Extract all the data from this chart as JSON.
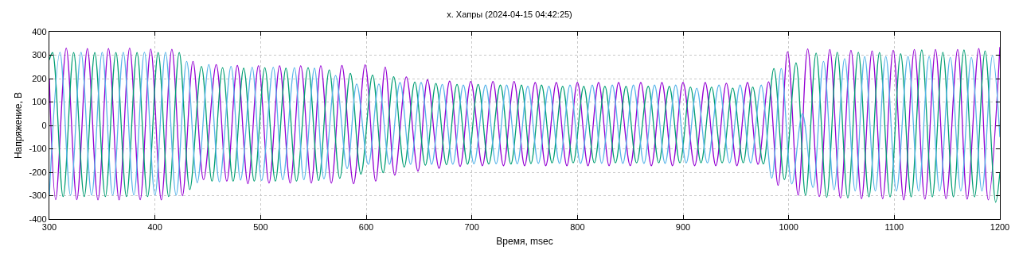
{
  "chart_data": {
    "type": "line",
    "title": "х. Хапры (2024-04-15 04:42:25)",
    "xlabel": "Время, msec",
    "ylabel": "Напряжение, В",
    "xlim": [
      300,
      1200
    ],
    "xticks": [
      300,
      400,
      500,
      600,
      700,
      800,
      900,
      1000,
      1100,
      1200
    ],
    "ylim": [
      -400,
      400
    ],
    "yticks": [
      -400,
      -300,
      -200,
      -100,
      0,
      100,
      200,
      300,
      400
    ],
    "grid": true,
    "marker": "none",
    "line_style": "solid",
    "series": [
      {
        "color": "#9400d3",
        "x": [
          300,
          306,
          316,
          326,
          336,
          346,
          356,
          366,
          376,
          386,
          396,
          406,
          416,
          426,
          436,
          446,
          458,
          468,
          478,
          488,
          498,
          508,
          518,
          528,
          538,
          548,
          557,
          567,
          577,
          588,
          599,
          609,
          618,
          627,
          638,
          649,
          658,
          669,
          679,
          689,
          699,
          710,
          720,
          730,
          740,
          750,
          760,
          770,
          780,
          790,
          800,
          810,
          820,
          830,
          839,
          850,
          860,
          870,
          880,
          890,
          900,
          911,
          921,
          931,
          941,
          951,
          961,
          971,
          981,
          990,
          999,
          1009,
          1018,
          1029,
          1039,
          1049,
          1059,
          1069,
          1079,
          1089,
          1099,
          1109,
          1119,
          1129,
          1139,
          1149,
          1160,
          1169,
          1180,
          1189,
          1200
        ],
        "values": [
          200,
          -317,
          330,
          -317,
          328,
          -318,
          328,
          -318,
          330,
          -317,
          326,
          -318,
          325,
          -300,
          273,
          -232,
          260,
          -238,
          256,
          -249,
          255,
          -246,
          255,
          -246,
          255,
          -246,
          255,
          -246,
          256,
          -249,
          259,
          -238,
          249,
          -212,
          207,
          -195,
          195,
          -183,
          189,
          -175,
          188,
          -172,
          188,
          -172,
          188,
          -172,
          183,
          -172,
          183,
          -172,
          183,
          -172,
          183,
          -172,
          183,
          -172,
          183,
          -172,
          183,
          -172,
          183,
          -172,
          183,
          -172,
          180,
          -172,
          183,
          -166,
          186,
          -256,
          315,
          -298,
          327,
          -304,
          324,
          -310,
          321,
          -313,
          318,
          -313,
          321,
          -318,
          324,
          -315,
          324,
          -313,
          324,
          -315,
          328,
          -318,
          335
        ]
      },
      {
        "color": "#009e73",
        "x": [
          300,
          303,
          313,
          323,
          333,
          343,
          353,
          363,
          373,
          383,
          393,
          403,
          413,
          423,
          433,
          444,
          454,
          464,
          474,
          484,
          494,
          504,
          514,
          524,
          534,
          545,
          555,
          565,
          575,
          585,
          595,
          606,
          616,
          626,
          636,
          646,
          656,
          666,
          676,
          686,
          696,
          706,
          716,
          727,
          737,
          747,
          756,
          766,
          776,
          786,
          796,
          806,
          816,
          826,
          836,
          846,
          856,
          867,
          877,
          887,
          897,
          907,
          917,
          927,
          937,
          947,
          957,
          966,
          976,
          986,
          996,
          1007,
          1016,
          1026,
          1036,
          1046,
          1056,
          1066,
          1076,
          1086,
          1096,
          1106,
          1116,
          1126,
          1136,
          1146,
          1156,
          1166,
          1176,
          1186,
          1196,
          1200
        ],
        "values": [
          280,
          311,
          -304,
          311,
          -304,
          311,
          -304,
          311,
          -304,
          311,
          -304,
          311,
          -304,
          311,
          -274,
          252,
          -238,
          246,
          -238,
          244,
          -238,
          246,
          -238,
          244,
          -238,
          246,
          -235,
          237,
          -226,
          222,
          -208,
          215,
          -202,
          208,
          -178,
          185,
          -170,
          179,
          -168,
          175,
          -166,
          175,
          -165,
          172,
          -165,
          172,
          -163,
          172,
          -160,
          167,
          -160,
          167,
          -160,
          167,
          -160,
          167,
          -160,
          167,
          -160,
          167,
          -160,
          164,
          -160,
          164,
          -160,
          160,
          -160,
          164,
          -165,
          243,
          -231,
          267,
          -298,
          309,
          -307,
          312,
          -310,
          312,
          -305,
          311,
          -305,
          306,
          -305,
          322,
          -305,
          312,
          -305,
          322,
          -305,
          318,
          -328,
          -200
        ]
      },
      {
        "color": "#56b4e9",
        "x": [
          300,
          310,
          320,
          330,
          340,
          350,
          360,
          370,
          380,
          390,
          400,
          410,
          420,
          430,
          440,
          451,
          461,
          472,
          481,
          492,
          501,
          512,
          521,
          532,
          541,
          551,
          560,
          571,
          582,
          591,
          602,
          612,
          622,
          632,
          642,
          652,
          662,
          672,
          682,
          692,
          702,
          713,
          723,
          733,
          743,
          753,
          763,
          773,
          783,
          793,
          803,
          814,
          823,
          833,
          843,
          853,
          863,
          873,
          883,
          893,
          903,
          913,
          923,
          934,
          944,
          954,
          964,
          974,
          984,
          993,
          1003,
          1013,
          1023,
          1033,
          1043,
          1053,
          1063,
          1072,
          1082,
          1092,
          1102,
          1113,
          1123,
          1133,
          1143,
          1153,
          1163,
          1173,
          1183,
          1193,
          1200
        ],
        "values": [
          -298,
          312,
          -298,
          312,
          -298,
          312,
          -298,
          312,
          -298,
          312,
          -298,
          312,
          -298,
          273,
          -244,
          260,
          -241,
          252,
          -233,
          248,
          -235,
          248,
          -232,
          246,
          -232,
          244,
          -228,
          213,
          -184,
          177,
          -166,
          177,
          -166,
          183,
          -166,
          183,
          -166,
          175,
          -166,
          172,
          -164,
          172,
          -164,
          172,
          -164,
          167,
          -162,
          167,
          -162,
          172,
          -162,
          172,
          -162,
          172,
          -162,
          172,
          -162,
          172,
          -162,
          172,
          -160,
          159,
          -160,
          172,
          -160,
          172,
          -160,
          172,
          -225,
          243,
          -250,
          50,
          -265,
          273,
          -275,
          285,
          -280,
          294,
          -280,
          294,
          -280,
          294,
          -280,
          294,
          -280,
          290,
          -280,
          290,
          -280,
          299,
          -50
        ]
      }
    ]
  }
}
